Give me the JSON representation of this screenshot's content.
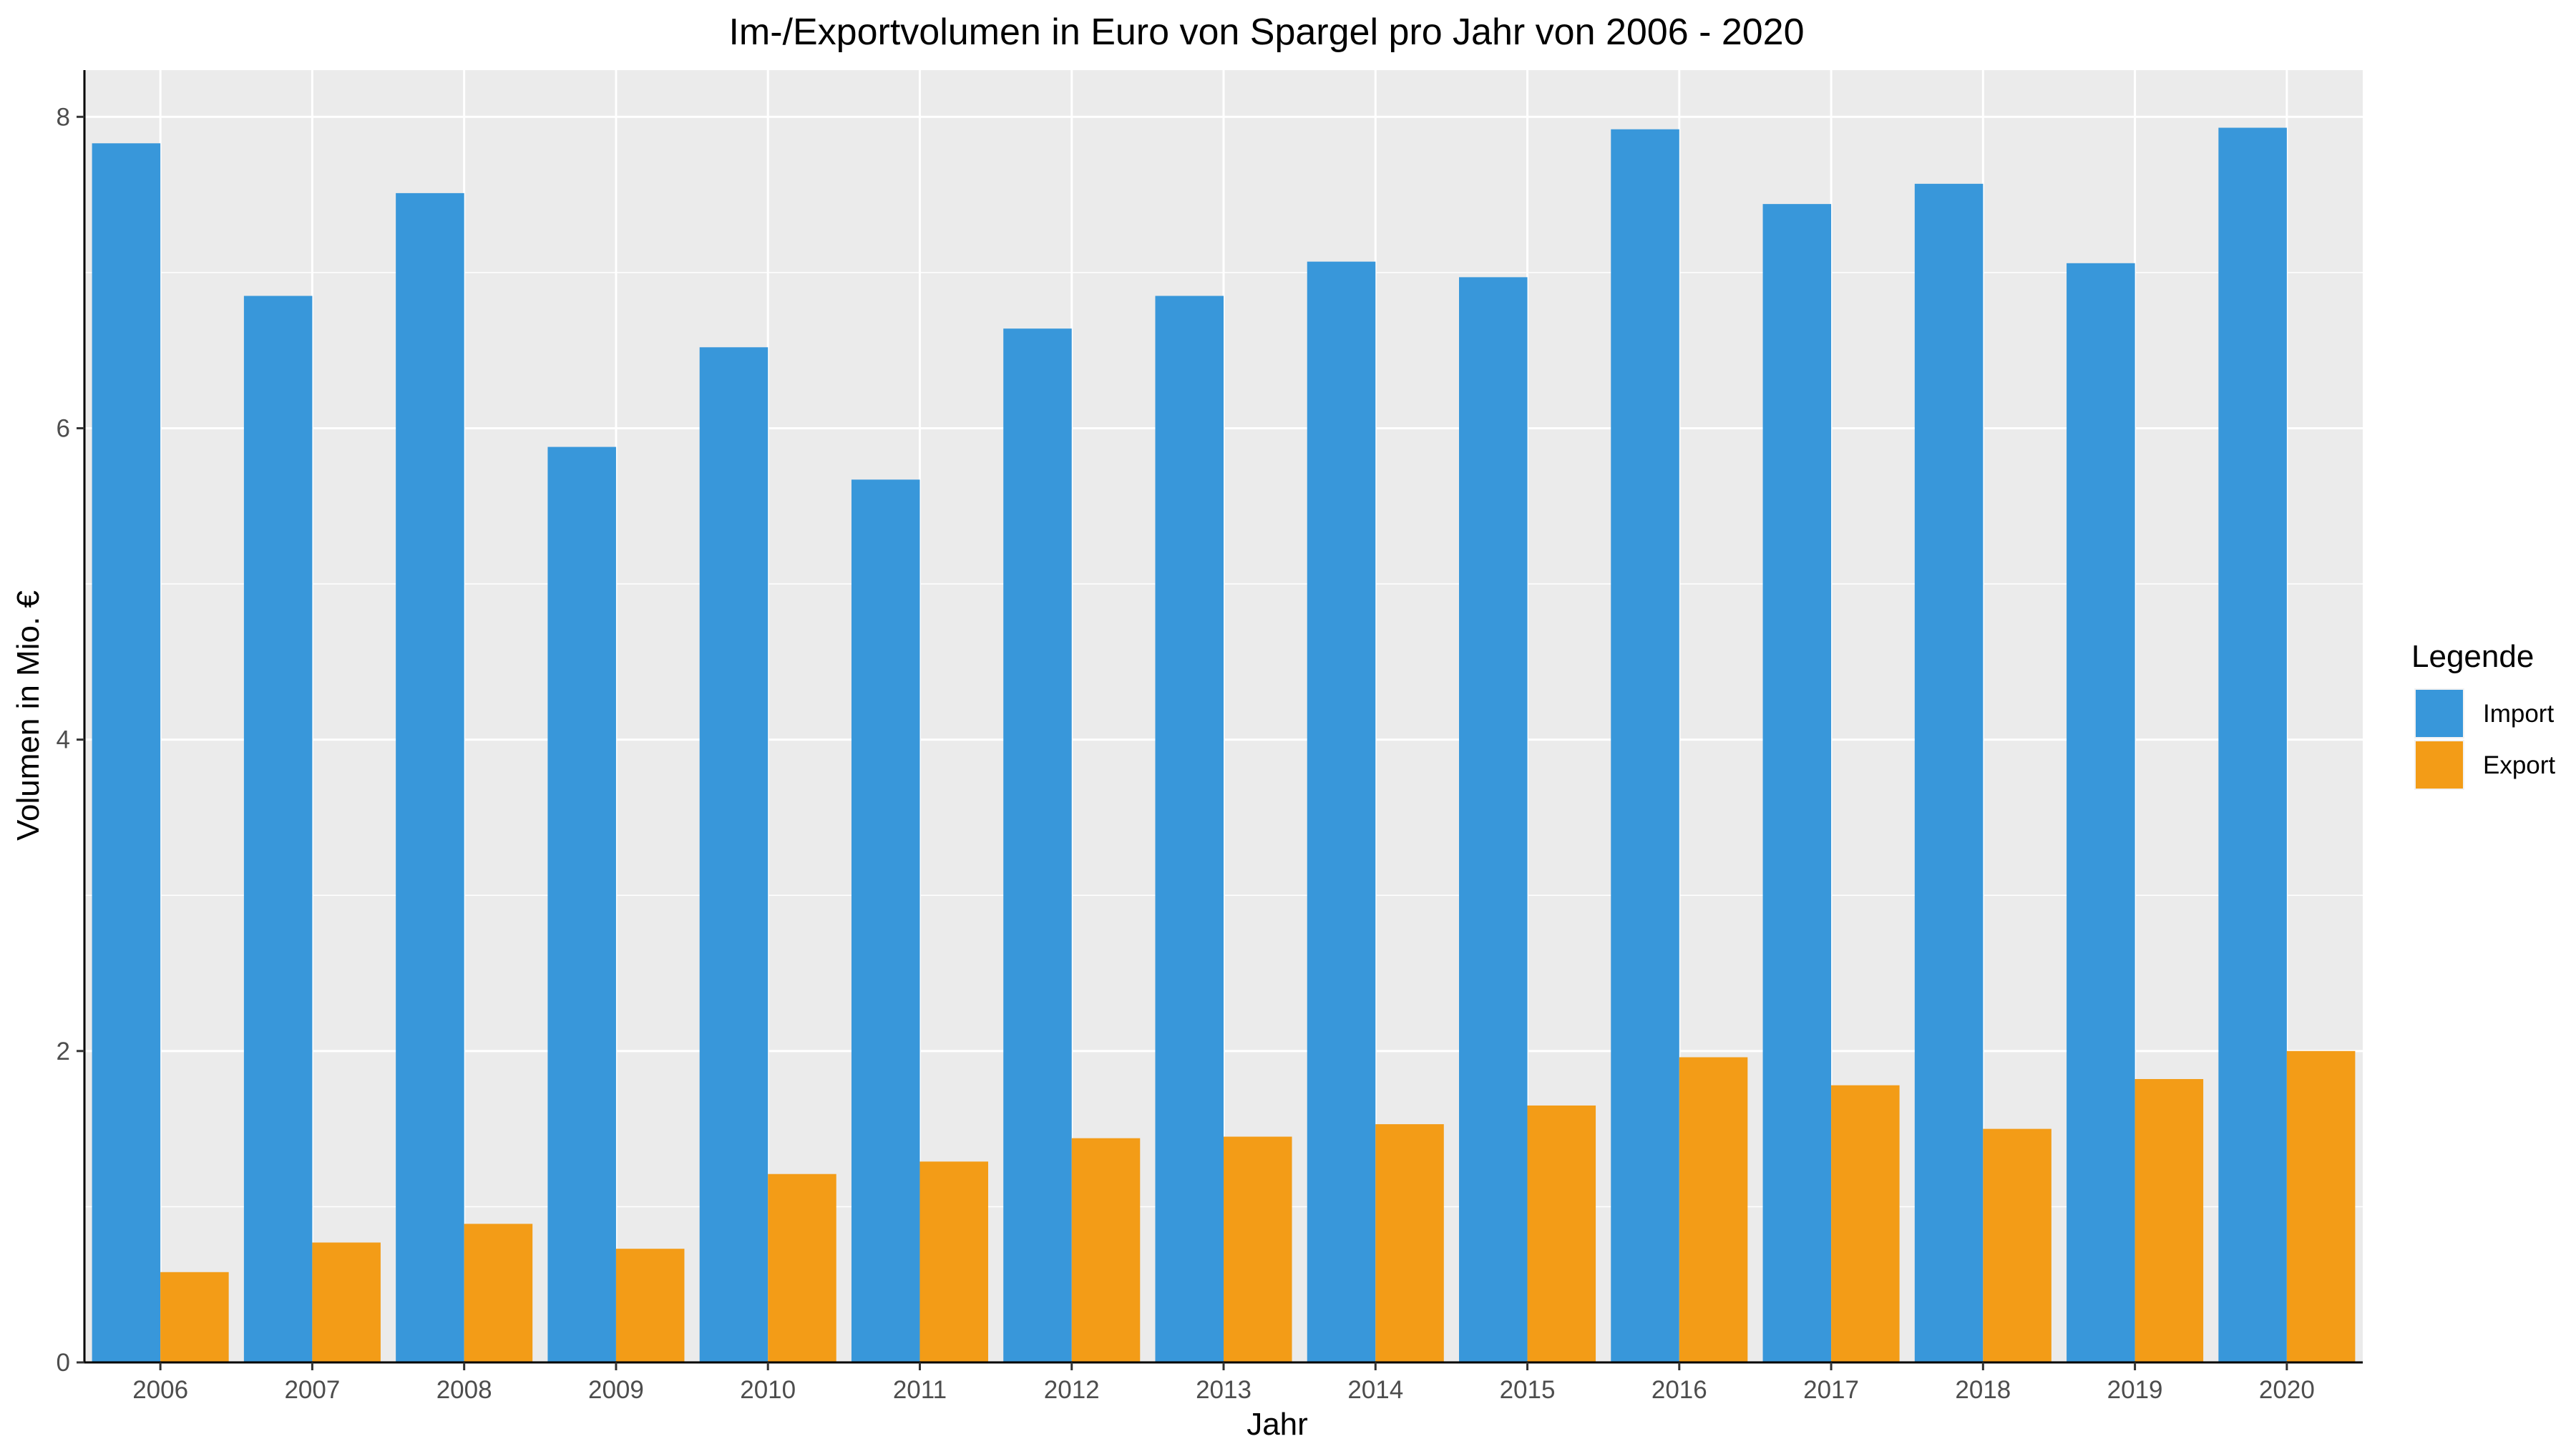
{
  "chart_data": {
    "type": "bar",
    "title": "Im-/Exportvolumen in Euro von Spargel pro Jahr von 2006 - 2020",
    "xlabel": "Jahr",
    "ylabel": "Volumen in Mio. €",
    "categories": [
      "2006",
      "2007",
      "2008",
      "2009",
      "2010",
      "2011",
      "2012",
      "2013",
      "2014",
      "2015",
      "2016",
      "2017",
      "2018",
      "2019",
      "2020"
    ],
    "series": [
      {
        "name": "Import",
        "color": "#3897da",
        "values": [
          7.83,
          6.85,
          7.51,
          5.88,
          6.52,
          5.67,
          6.64,
          6.85,
          7.07,
          6.97,
          7.92,
          7.44,
          7.57,
          7.06,
          7.93
        ]
      },
      {
        "name": "Export",
        "color": "#f39c17",
        "values": [
          0.58,
          0.77,
          0.89,
          0.73,
          1.21,
          1.29,
          1.44,
          1.45,
          1.53,
          1.65,
          1.96,
          1.78,
          1.5,
          1.82,
          2.0
        ]
      }
    ],
    "ylim": [
      0,
      8.3
    ],
    "yticks": [
      0,
      2,
      4,
      6,
      8
    ],
    "grid": true,
    "panel_background": "#ebebeb",
    "legend": {
      "title": "Legende",
      "placement": "right"
    }
  }
}
